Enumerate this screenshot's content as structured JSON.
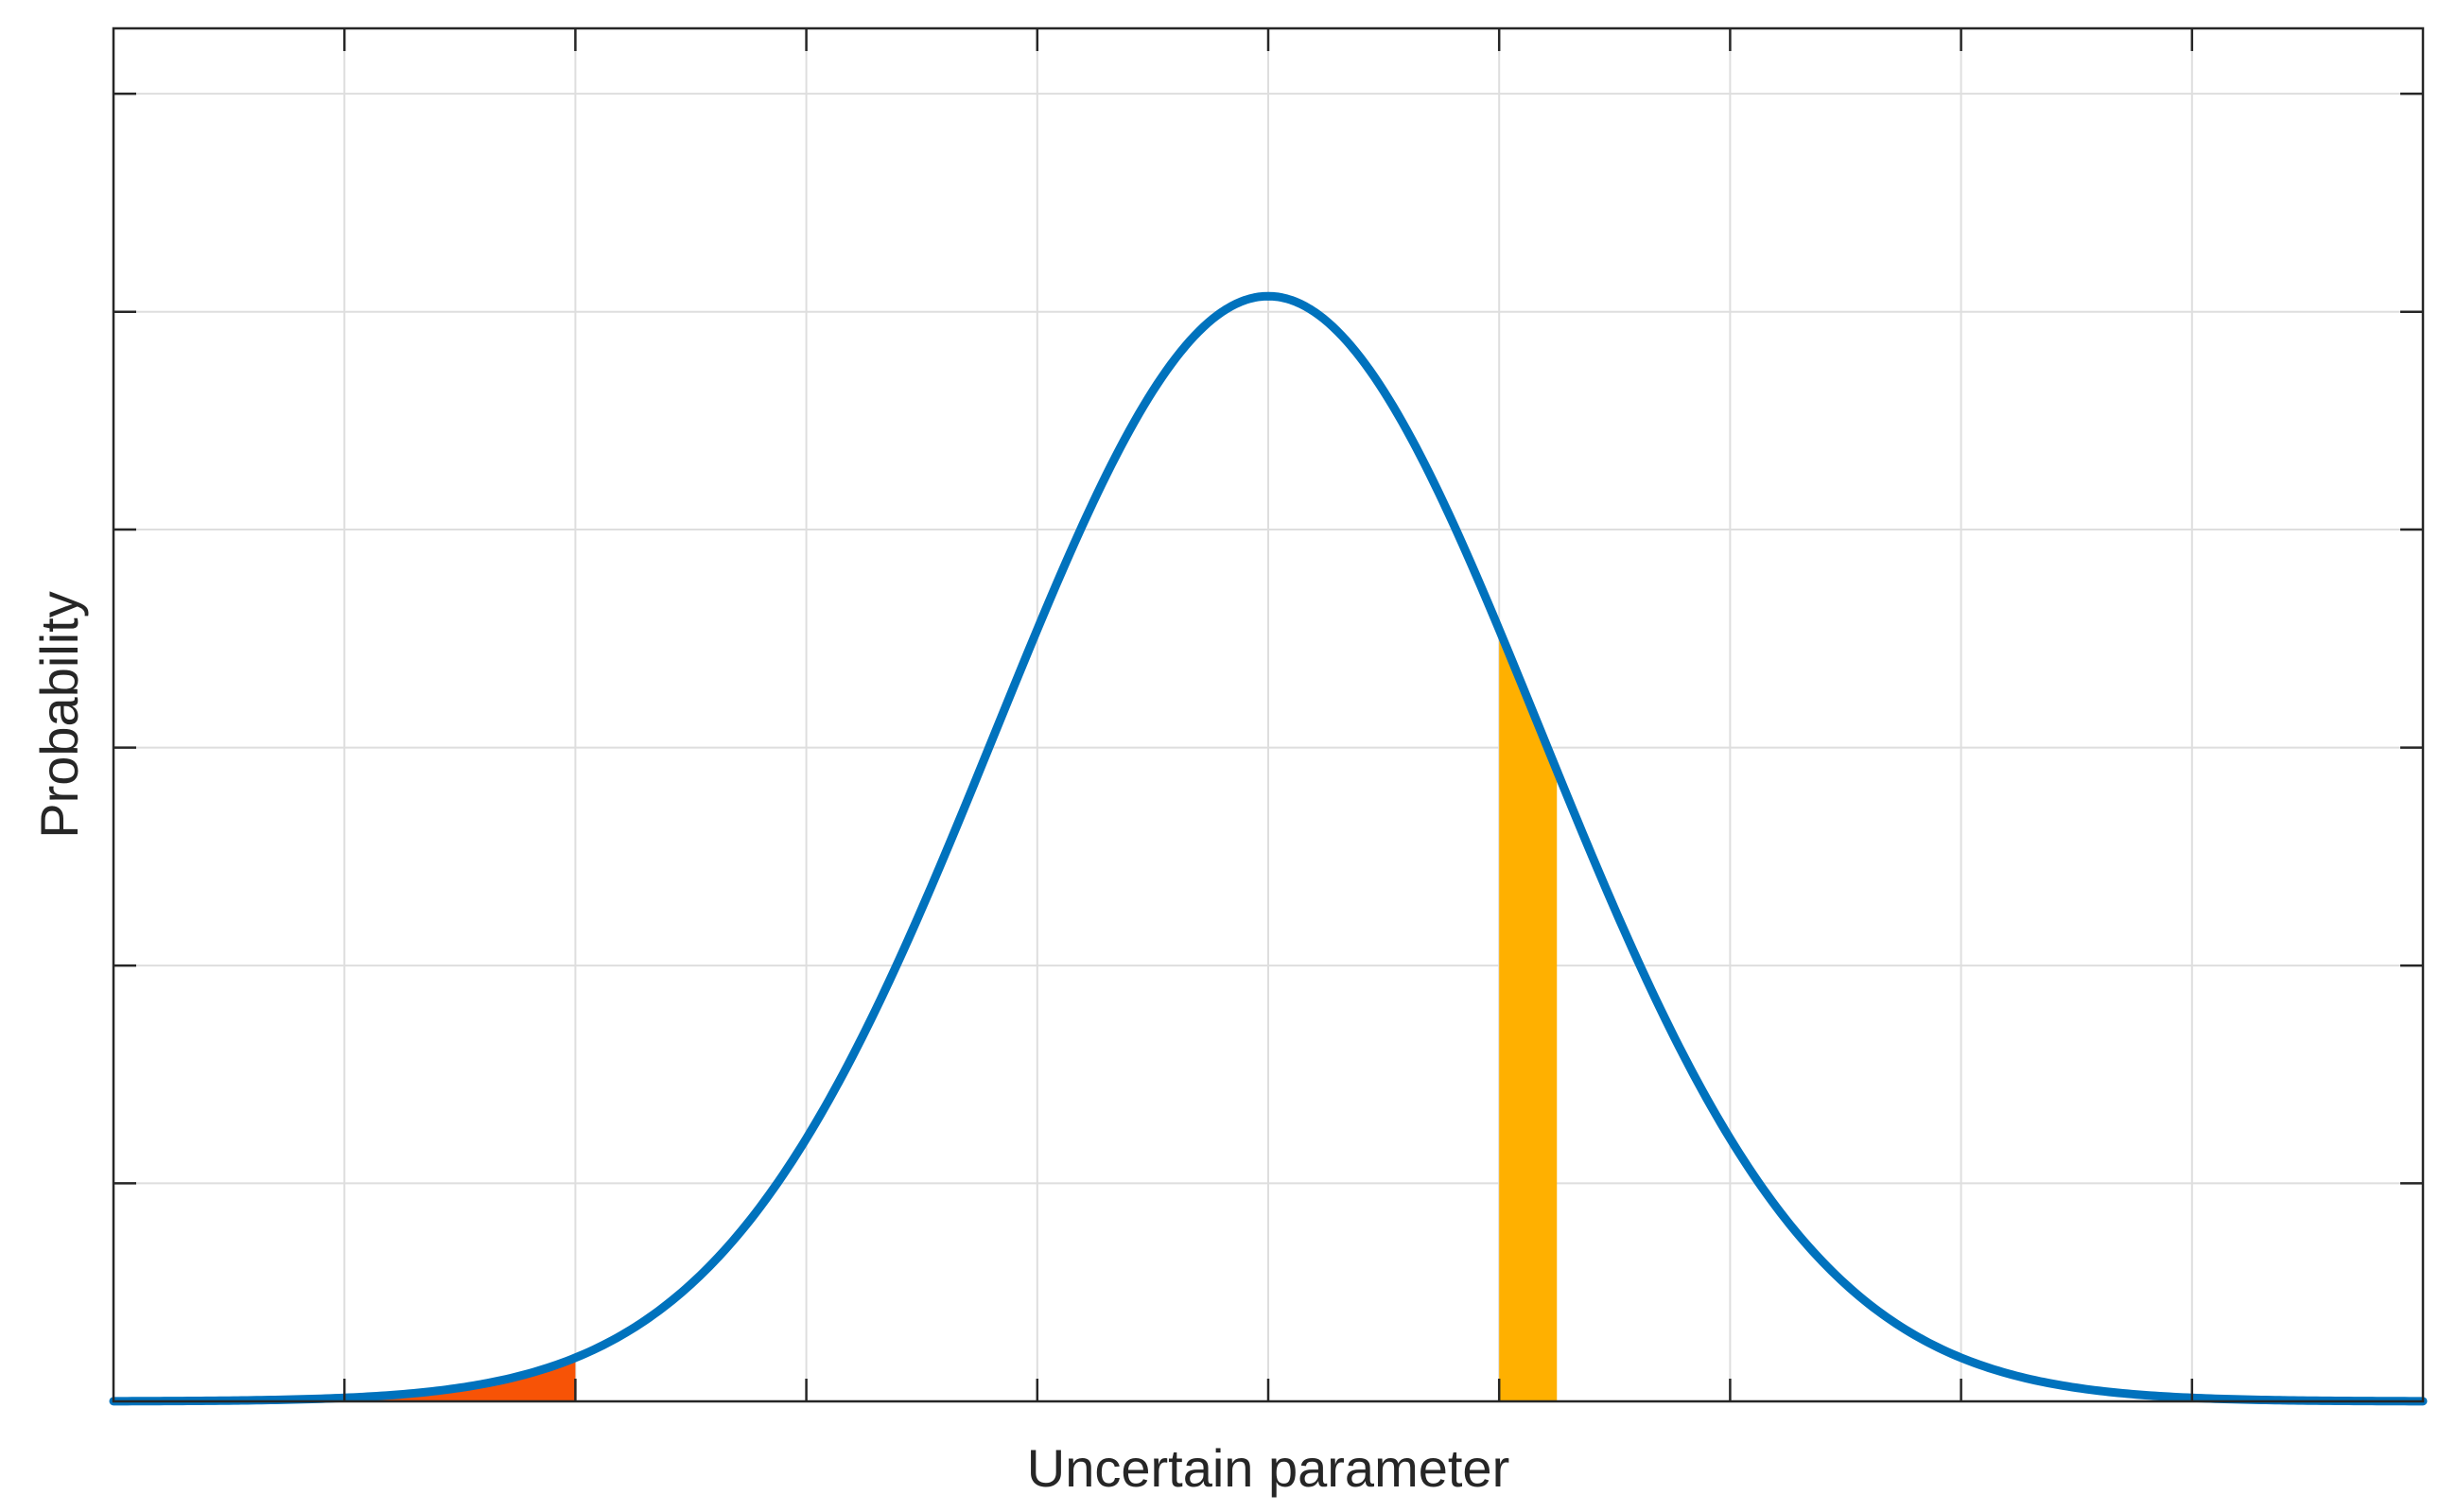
{
  "chart_data": {
    "type": "area",
    "title": "",
    "xlabel": "Uncertain parameter",
    "ylabel": "Probability",
    "xlim": [
      -5,
      5
    ],
    "ylim": [
      0,
      0.42
    ],
    "grid": true,
    "xticks": [
      -5,
      -4,
      -3,
      -2,
      -1,
      0,
      1,
      2,
      3,
      4,
      5
    ],
    "yticks": [
      0,
      0.0667,
      0.1333,
      0.2,
      0.2667,
      0.3333,
      0.4,
      0.4667
    ],
    "tick_labels_shown": false,
    "series": [
      {
        "kind": "line",
        "distribution": "normal",
        "mean": 0,
        "std": 1.18,
        "color": "#0072BD"
      }
    ],
    "shaded_regions": [
      {
        "x_from": -4,
        "x_to": -3,
        "color": "#F75306"
      },
      {
        "x_from": 1,
        "x_to": 1.25,
        "color": "#FFB000"
      }
    ]
  }
}
